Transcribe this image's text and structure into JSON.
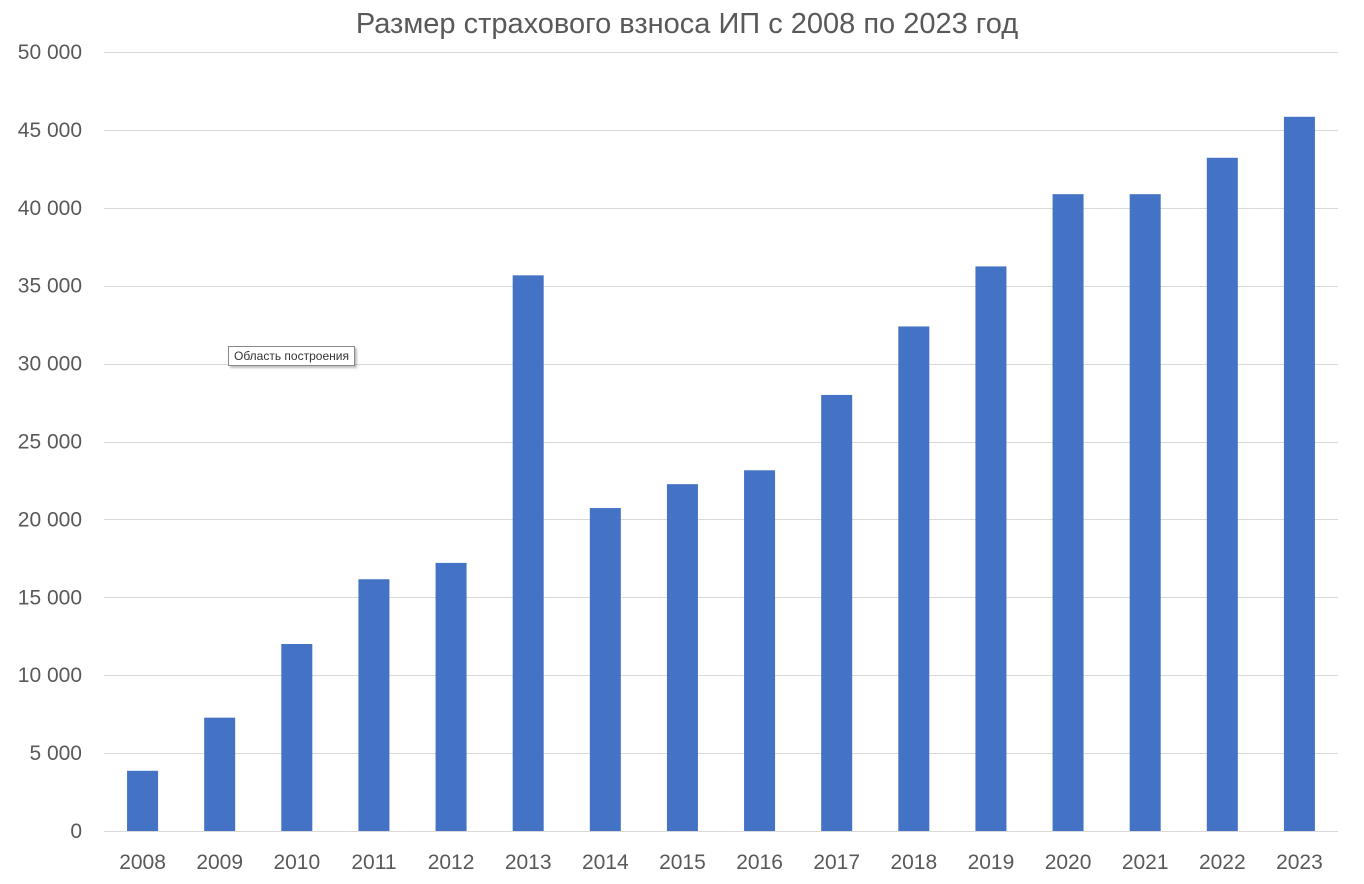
{
  "chart_data": {
    "type": "bar",
    "title": "Размер страхового взноса ИП с 2008 по 2023 год",
    "categories": [
      "2008",
      "2009",
      "2010",
      "2011",
      "2012",
      "2013",
      "2014",
      "2015",
      "2016",
      "2017",
      "2018",
      "2019",
      "2020",
      "2021",
      "2022",
      "2023"
    ],
    "values": [
      3864,
      7275,
      12003,
      16159,
      17209,
      35665,
      20728,
      22261,
      23153,
      27990,
      32385,
      36238,
      40874,
      40874,
      43211,
      45842
    ],
    "ylim": [
      0,
      50000
    ],
    "yticks": [
      0,
      5000,
      10000,
      15000,
      20000,
      25000,
      30000,
      35000,
      40000,
      45000,
      50000
    ],
    "ytick_labels": [
      "0",
      "5 000",
      "10 000",
      "15 000",
      "20 000",
      "25 000",
      "30 000",
      "35 000",
      "40 000",
      "45 000",
      "50 000"
    ],
    "grid": true,
    "legend": "none",
    "bar_color": "#4472C4",
    "grid_color": "#D9D9D9",
    "text_color": "#595959"
  },
  "tooltip": {
    "label": "Область построения"
  }
}
